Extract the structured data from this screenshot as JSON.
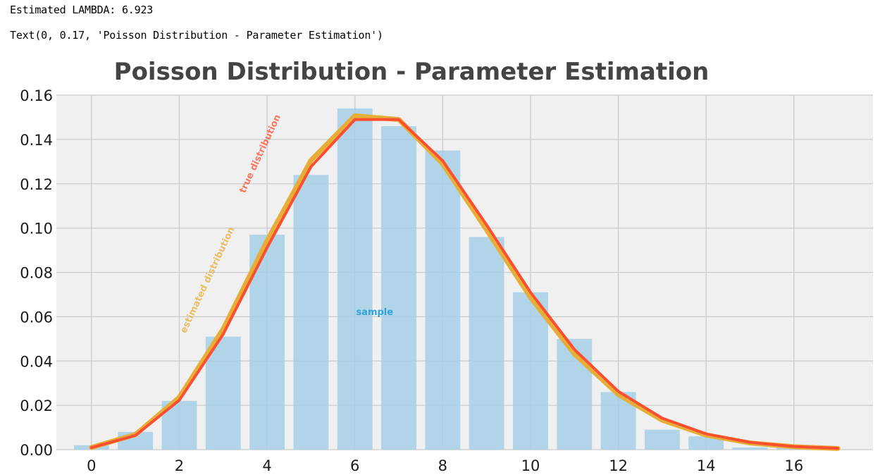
{
  "output": {
    "line1": "Estimated LAMBDA: 6.923",
    "line2": "Text(0, 0.17, 'Poisson Distribution - Parameter Estimation')"
  },
  "colors": {
    "bar": "#a6cfe6",
    "true_line": "#fc4f30",
    "estimated_line": "#e5ae38",
    "sample_label": "#30a2da",
    "plot_bg": "#f0f0f0",
    "grid": "#cbcbcb"
  },
  "chart_data": {
    "type": "bar",
    "title": "Poisson Distribution - Parameter Estimation",
    "xlabel": "",
    "ylabel": "",
    "xlim": [
      -0.8,
      17.8
    ],
    "ylim": [
      0,
      0.16
    ],
    "xticks": [
      "0",
      "2",
      "4",
      "6",
      "8",
      "10",
      "12",
      "14",
      "16"
    ],
    "xtick_values": [
      0,
      2,
      4,
      6,
      8,
      10,
      12,
      14,
      16
    ],
    "yticks": [
      "0.00",
      "0.02",
      "0.04",
      "0.06",
      "0.08",
      "0.10",
      "0.12",
      "0.14",
      "0.16"
    ],
    "ytick_values": [
      0,
      0.02,
      0.04,
      0.06,
      0.08,
      0.1,
      0.12,
      0.14,
      0.16
    ],
    "grid": true,
    "x": [
      0,
      1,
      2,
      3,
      4,
      5,
      6,
      7,
      8,
      9,
      10,
      11,
      12,
      13,
      14,
      15,
      16,
      17
    ],
    "series": [
      {
        "name": "sample",
        "kind": "bar",
        "values": [
          0.002,
          0.008,
          0.022,
          0.051,
          0.097,
          0.124,
          0.154,
          0.146,
          0.135,
          0.096,
          0.071,
          0.05,
          0.026,
          0.009,
          0.006,
          0.001,
          0.001,
          0.0
        ]
      },
      {
        "name": "true distribution",
        "kind": "line",
        "values": [
          0.0009,
          0.0064,
          0.0223,
          0.0521,
          0.0912,
          0.1277,
          0.149,
          0.149,
          0.1304,
          0.1014,
          0.071,
          0.0452,
          0.0263,
          0.0142,
          0.0071,
          0.0033,
          0.0014,
          0.0006
        ]
      },
      {
        "name": "estimated distribution",
        "kind": "line",
        "values": [
          0.001,
          0.0068,
          0.0236,
          0.0545,
          0.0943,
          0.1306,
          0.1507,
          0.149,
          0.129,
          0.0992,
          0.0687,
          0.0432,
          0.0249,
          0.0133,
          0.0066,
          0.003,
          0.0013,
          0.0005
        ]
      }
    ],
    "annotations": [
      {
        "text": "true distribution",
        "x": 3.9,
        "y": 0.133,
        "rotation": -65,
        "color_key": "true_line"
      },
      {
        "text": "estimated distribution",
        "x": 2.7,
        "y": 0.076,
        "rotation": -65,
        "color_key": "estimated_line"
      },
      {
        "text": "sample",
        "x": 6.45,
        "y": 0.0608,
        "rotation": 0,
        "color_key": "sample_label"
      }
    ]
  }
}
